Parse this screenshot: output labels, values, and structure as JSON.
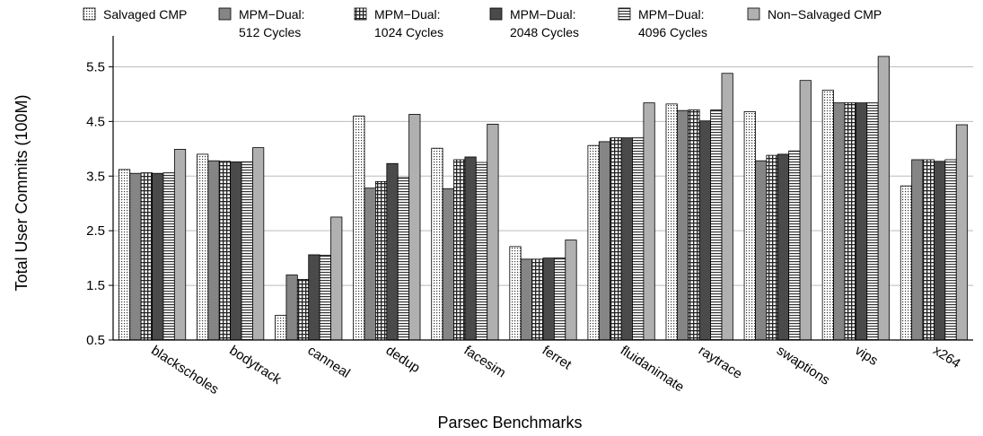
{
  "chart_data": {
    "type": "bar",
    "title": "",
    "xlabel": "Parsec Benchmarks",
    "ylabel": "Total User Commits (100M)",
    "ylim": [
      0.5,
      6.0
    ],
    "yticks": [
      "0.5",
      "1.5",
      "2.5",
      "3.5",
      "4.5",
      "5.5"
    ],
    "grid": "horizontal",
    "legend_placement": "top",
    "categories": [
      "blackscholes",
      "bodytrack",
      "canneal",
      "dedup",
      "facesim",
      "ferret",
      "fluidanimate",
      "raytrace",
      "swaptions",
      "vips",
      "x264"
    ],
    "series": [
      {
        "name": "Salvaged CMP",
        "pattern": "dots",
        "values": [
          3.62,
          3.9,
          0.95,
          4.6,
          4.01,
          2.21,
          4.06,
          4.82,
          4.68,
          5.07,
          3.32
        ]
      },
      {
        "name": "MPM−Dual: 512 Cycles",
        "pattern": "solid-mid",
        "values": [
          3.55,
          3.78,
          1.69,
          3.28,
          3.27,
          1.98,
          4.13,
          4.7,
          3.78,
          4.84,
          3.8
        ]
      },
      {
        "name": "MPM−Dual: 1024 Cycles",
        "pattern": "grid",
        "values": [
          3.56,
          3.77,
          1.61,
          3.4,
          3.8,
          1.98,
          4.2,
          4.71,
          3.88,
          4.84,
          3.8
        ]
      },
      {
        "name": "MPM−Dual: 2048 Cycles",
        "pattern": "solid-dark",
        "values": [
          3.55,
          3.76,
          2.06,
          3.73,
          3.85,
          2.0,
          4.2,
          4.51,
          3.9,
          4.84,
          3.77
        ]
      },
      {
        "name": "MPM−Dual: 4096 Cycles",
        "pattern": "hlines",
        "values": [
          3.56,
          3.76,
          2.05,
          3.47,
          3.75,
          2.0,
          4.2,
          4.71,
          3.96,
          4.84,
          3.8
        ]
      },
      {
        "name": "Non−Salvaged CMP",
        "pattern": "solid-light",
        "values": [
          3.99,
          4.02,
          2.75,
          4.63,
          4.45,
          2.33,
          4.84,
          5.38,
          5.25,
          5.69,
          4.44
        ]
      }
    ],
    "legend": [
      {
        "line1": "Salvaged CMP",
        "line2": ""
      },
      {
        "line1": "MPM−Dual:",
        "line2": "512 Cycles"
      },
      {
        "line1": "MPM−Dual:",
        "line2": "1024 Cycles"
      },
      {
        "line1": "MPM−Dual:",
        "line2": "2048 Cycles"
      },
      {
        "line1": "MPM−Dual:",
        "line2": "4096 Cycles"
      },
      {
        "line1": "Non−Salvaged CMP",
        "line2": ""
      }
    ],
    "colors": {
      "solid-mid": "#858585",
      "solid-dark": "#4a4a4a",
      "solid-light": "#b0b0b0",
      "pattern-ink": "#333333",
      "grid": "#bbbbbb"
    }
  }
}
